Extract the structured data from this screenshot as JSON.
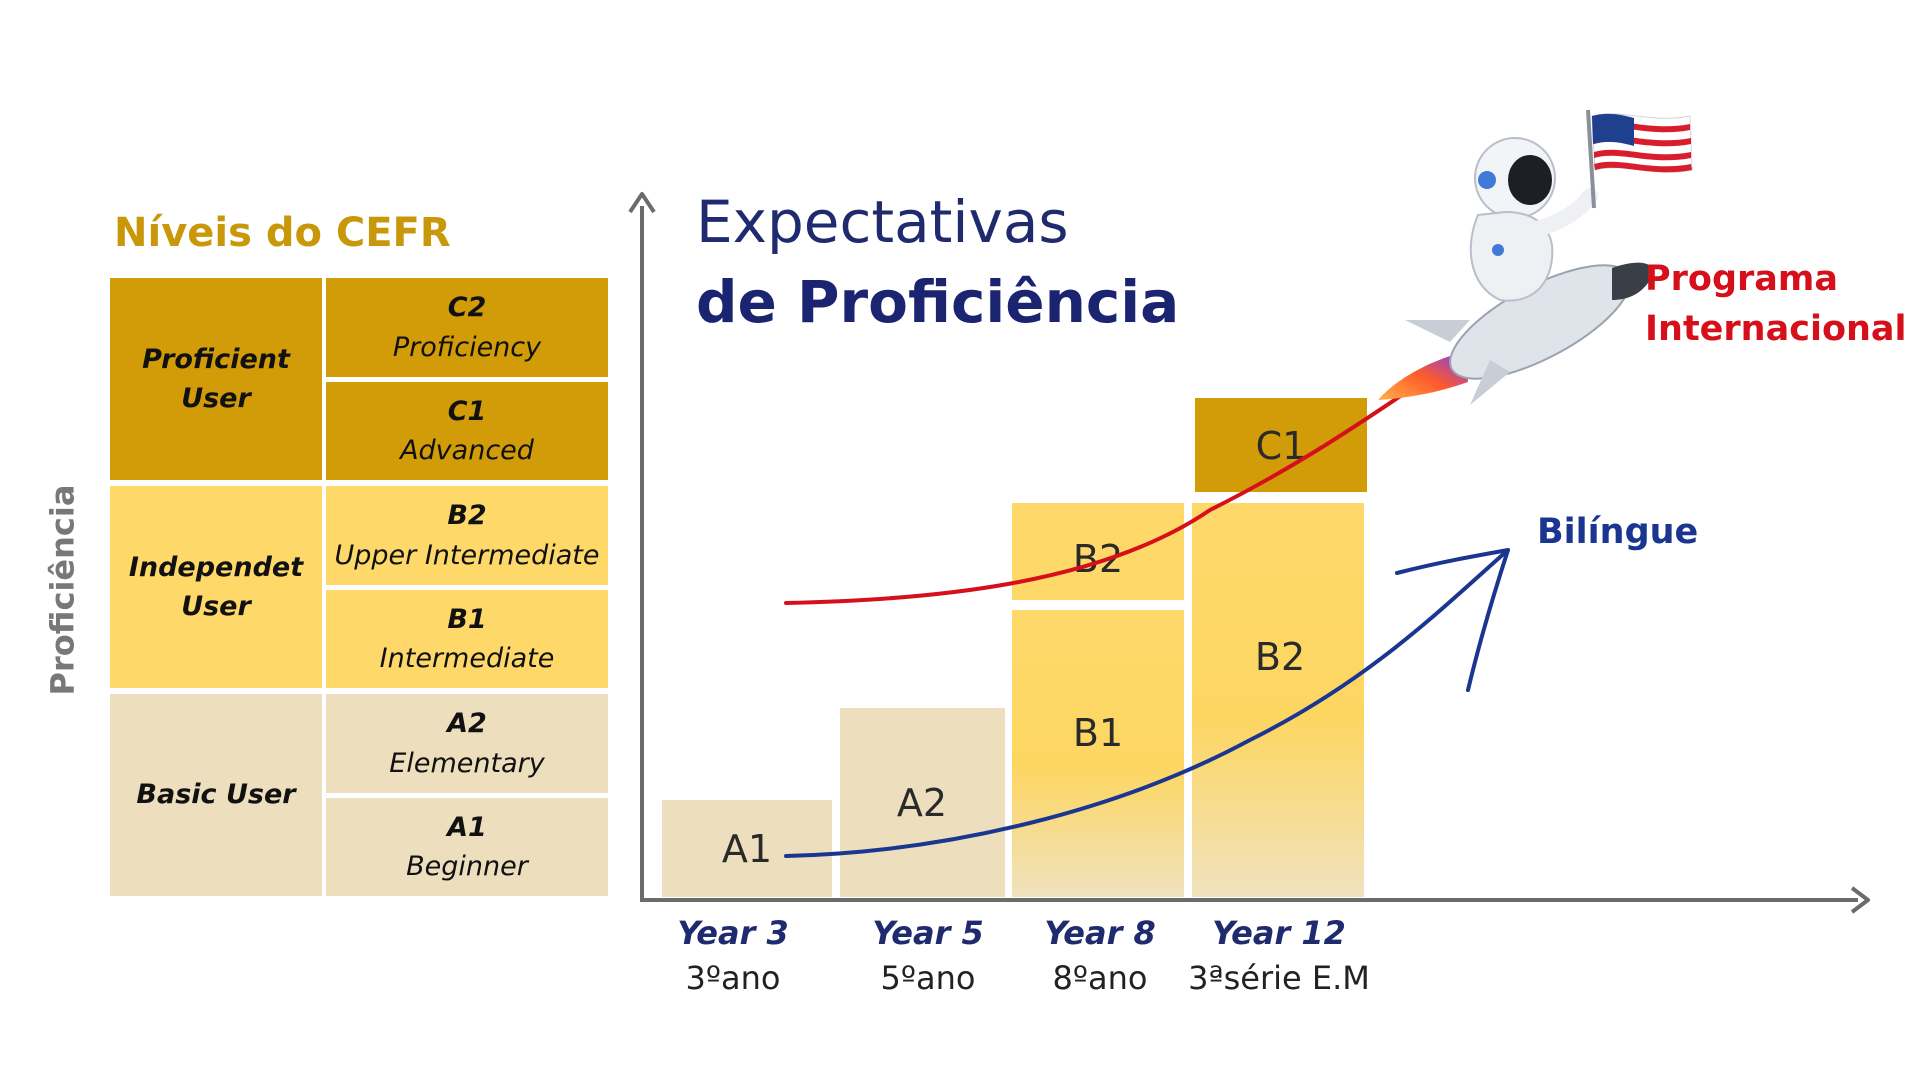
{
  "cefr_table": {
    "title": "Níveis do CEFR",
    "side_label": "Proficiência",
    "groups": [
      {
        "name": "Proficient User",
        "color": "#d19c08",
        "levels": [
          {
            "code": "C2",
            "name": "Proficiency"
          },
          {
            "code": "C1",
            "name": "Advanced"
          }
        ]
      },
      {
        "name": "Independet User",
        "color": "#fed96a",
        "levels": [
          {
            "code": "B2",
            "name": "Upper Intermediate"
          },
          {
            "code": "B1",
            "name": "Intermediate"
          }
        ]
      },
      {
        "name": "Basic User",
        "color": "#eddfbd",
        "levels": [
          {
            "code": "A2",
            "name": "Elementary"
          },
          {
            "code": "A1",
            "name": "Beginner"
          }
        ]
      }
    ]
  },
  "chart": {
    "title_line1": "Expectativas",
    "title_line2": "de Proficiência",
    "colors": {
      "basic": "#eddfbd",
      "independent": "#fed96a",
      "proficient": "#d19c08",
      "axis": "#6b6b6b",
      "programa_arrow": "#d6101a",
      "bilingue_arrow": "#1a3690"
    },
    "x_categories": [
      {
        "year": "Year 3",
        "grade": "3ºano"
      },
      {
        "year": "Year 5",
        "grade": "5ºano"
      },
      {
        "year": "Year 8",
        "grade": "8ºano"
      },
      {
        "year": "Year 12",
        "grade": "3ªsérie E.M"
      }
    ],
    "columns": [
      {
        "category": "Year 3",
        "blocks": [
          {
            "label": "A1",
            "level": 1
          }
        ]
      },
      {
        "category": "Year 5",
        "blocks": [
          {
            "label": "A2",
            "level": 2
          }
        ]
      },
      {
        "category": "Year 8",
        "blocks": [
          {
            "label": "B1",
            "level": 3
          },
          {
            "label": "B2",
            "level": 4
          }
        ]
      },
      {
        "category": "Year 12",
        "blocks": [
          {
            "label": "B2",
            "level": 4
          },
          {
            "label": "C1",
            "level": 5
          }
        ]
      }
    ],
    "programs": [
      {
        "name": "Programa Internacional",
        "line1": "Programa",
        "line2": "Internacional",
        "color": "#d6101a"
      },
      {
        "name": "Bilíngue",
        "color": "#1a3690"
      }
    ],
    "illustration": "astronaut-on-rocket-with-us-flag"
  }
}
